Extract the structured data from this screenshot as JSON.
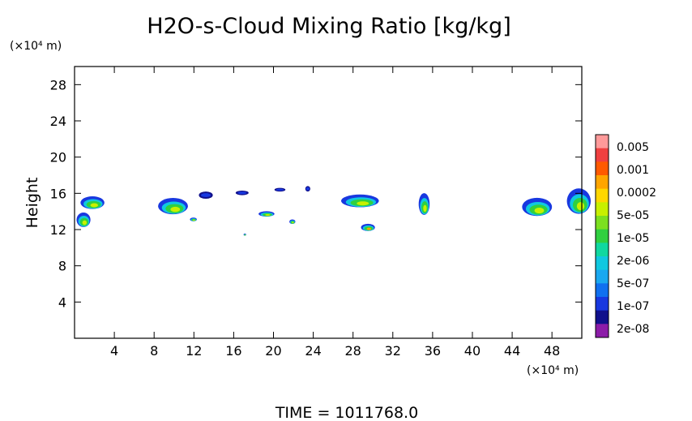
{
  "chart_data": {
    "type": "heatmap",
    "title": "H2O-s-Cloud Mixing Ratio [kg/kg]",
    "ylabel": "Height",
    "y_unit": "(×10⁴ m)",
    "x_unit": "(×10⁴ m)",
    "footer": "TIME  =  1011768.0",
    "xlim": [
      0,
      51
    ],
    "ylim": [
      0,
      30
    ],
    "x_ticks": [
      4,
      8,
      12,
      16,
      20,
      24,
      28,
      32,
      36,
      40,
      44,
      48
    ],
    "y_ticks": [
      4,
      8,
      12,
      16,
      20,
      24,
      28
    ],
    "colorbar": {
      "labels": [
        "0.005",
        "0.001",
        "0.0002",
        "5e-05",
        "1e-05",
        "2e-06",
        "5e-07",
        "1e-07",
        "2e-08"
      ],
      "colors": [
        "#ff9a9a",
        "#f04040",
        "#ff5a00",
        "#ffa500",
        "#ffd700",
        "#c8f000",
        "#7ce020",
        "#30d040",
        "#10d8a0",
        "#10c8e0",
        "#1aa8f0",
        "#1070f0",
        "#1838e0",
        "#10108c",
        "#8c1ca8"
      ]
    },
    "cloud_regions": [
      {
        "x": 0.6,
        "y": 14.2,
        "w": 2.4,
        "h": 1.4,
        "level": "core"
      },
      {
        "x": 0.2,
        "y": 12.2,
        "w": 1.4,
        "h": 1.6,
        "level": "core"
      },
      {
        "x": 8.4,
        "y": 13.6,
        "w": 3.0,
        "h": 1.8,
        "level": "core"
      },
      {
        "x": 12.5,
        "y": 15.4,
        "w": 1.4,
        "h": 0.8,
        "level": "edge"
      },
      {
        "x": 11.6,
        "y": 12.9,
        "w": 0.7,
        "h": 0.4,
        "level": "core"
      },
      {
        "x": 16.2,
        "y": 15.8,
        "w": 1.3,
        "h": 0.5,
        "level": "edge"
      },
      {
        "x": 20.1,
        "y": 16.2,
        "w": 1.1,
        "h": 0.4,
        "level": "edge"
      },
      {
        "x": 23.2,
        "y": 16.2,
        "w": 0.5,
        "h": 0.6,
        "level": "edge"
      },
      {
        "x": 18.5,
        "y": 13.4,
        "w": 1.6,
        "h": 0.6,
        "level": "core"
      },
      {
        "x": 21.6,
        "y": 12.6,
        "w": 0.6,
        "h": 0.5,
        "level": "core"
      },
      {
        "x": 17.0,
        "y": 11.3,
        "w": 0.25,
        "h": 0.25,
        "level": "core"
      },
      {
        "x": 26.8,
        "y": 14.4,
        "w": 3.8,
        "h": 1.4,
        "level": "core"
      },
      {
        "x": 28.8,
        "y": 11.8,
        "w": 1.4,
        "h": 0.8,
        "level": "peak"
      },
      {
        "x": 34.6,
        "y": 13.5,
        "w": 1.1,
        "h": 2.4,
        "level": "core"
      },
      {
        "x": 45.0,
        "y": 13.4,
        "w": 3.0,
        "h": 2.0,
        "level": "core"
      },
      {
        "x": 49.5,
        "y": 13.6,
        "w": 2.4,
        "h": 2.8,
        "level": "core"
      }
    ]
  }
}
